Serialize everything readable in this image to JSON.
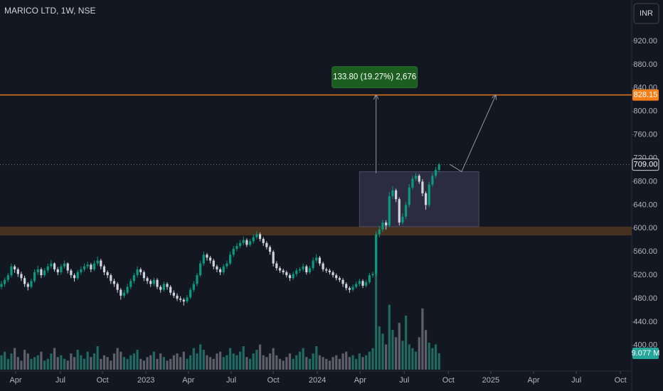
{
  "chart_data": {
    "type": "candlestick",
    "title": "MARICO LTD, 1W, NSE",
    "currency": "INR",
    "up_color": "#089981",
    "down_color": "#d1d4dc",
    "volume_up_color": "#1f6b63",
    "volume_down_color": "#5d606b",
    "xlim": [
      -0.43,
      190.1
    ],
    "xticks": [
      {
        "value": 4.3,
        "label": "Apr"
      },
      {
        "value": 17.8,
        "label": "Jul"
      },
      {
        "value": 30.5,
        "label": "Oct"
      },
      {
        "value": 43.6,
        "label": "2023"
      },
      {
        "value": 56.4,
        "label": "Apr"
      },
      {
        "value": 69.3,
        "label": "Jul"
      },
      {
        "value": 82,
        "label": "Oct"
      },
      {
        "value": 95.3,
        "label": "2024"
      },
      {
        "value": 108.2,
        "label": "Apr"
      },
      {
        "value": 121.5,
        "label": "Jul"
      },
      {
        "value": 134.8,
        "label": "Oct"
      },
      {
        "value": 147.6,
        "label": "2025"
      },
      {
        "value": 160.5,
        "label": "Apr"
      },
      {
        "value": 173.4,
        "label": "Jul"
      },
      {
        "value": 186.7,
        "label": "Oct"
      }
    ],
    "ylim": [
      356,
      990.5
    ],
    "yticks": [
      {
        "value": 400,
        "label": "400.00"
      },
      {
        "value": 440,
        "label": "440.00"
      },
      {
        "value": 480,
        "label": "480.00"
      },
      {
        "value": 520,
        "label": "520.00"
      },
      {
        "value": 560,
        "label": "560.00"
      },
      {
        "value": 600,
        "label": "600.00"
      },
      {
        "value": 640,
        "label": "640.00"
      },
      {
        "value": 680,
        "label": "680.00"
      },
      {
        "value": 720,
        "label": "720.00"
      },
      {
        "value": 760,
        "label": "760.00"
      },
      {
        "value": 800,
        "label": "800.00"
      },
      {
        "value": 840,
        "label": "840.00"
      },
      {
        "value": 880,
        "label": "880.00"
      },
      {
        "value": 920,
        "label": "920.00"
      }
    ],
    "y2lim": [
      0,
      205
    ],
    "grid": false,
    "candles": [
      [
        500,
        510,
        496,
        505
      ],
      [
        505,
        516,
        500,
        512
      ],
      [
        512,
        524,
        508,
        520
      ],
      [
        520,
        540,
        516,
        535
      ],
      [
        535,
        538,
        524,
        530
      ],
      [
        530,
        533,
        517,
        522
      ],
      [
        522,
        526,
        510,
        515
      ],
      [
        515,
        519,
        500,
        505
      ],
      [
        505,
        508,
        494,
        500
      ],
      [
        500,
        514,
        497,
        510
      ],
      [
        510,
        530,
        507,
        525
      ],
      [
        525,
        536,
        520,
        530
      ],
      [
        530,
        533,
        515,
        520
      ],
      [
        520,
        532,
        517,
        528
      ],
      [
        528,
        540,
        524,
        535
      ],
      [
        535,
        546,
        531,
        540
      ],
      [
        540,
        542,
        526,
        530
      ],
      [
        530,
        534,
        520,
        525
      ],
      [
        525,
        539,
        521,
        535
      ],
      [
        535,
        545,
        531,
        540
      ],
      [
        540,
        542,
        523,
        528
      ],
      [
        528,
        531,
        515,
        520
      ],
      [
        520,
        523,
        509,
        515
      ],
      [
        515,
        529,
        512,
        525
      ],
      [
        525,
        535,
        521,
        530
      ],
      [
        530,
        540,
        526,
        535
      ],
      [
        535,
        543,
        531,
        538
      ],
      [
        538,
        541,
        525,
        530
      ],
      [
        530,
        545,
        527,
        540
      ],
      [
        540,
        552,
        536,
        545
      ],
      [
        545,
        548,
        530,
        535
      ],
      [
        535,
        538,
        520,
        525
      ],
      [
        525,
        528,
        515,
        520
      ],
      [
        520,
        523,
        505,
        510
      ],
      [
        510,
        514,
        500,
        505
      ],
      [
        505,
        508,
        490,
        495
      ],
      [
        495,
        498,
        478,
        485
      ],
      [
        485,
        495,
        481,
        490
      ],
      [
        490,
        505,
        487,
        500
      ],
      [
        500,
        514,
        496,
        510
      ],
      [
        510,
        524,
        506,
        520
      ],
      [
        520,
        535,
        516,
        530
      ],
      [
        530,
        533,
        520,
        525
      ],
      [
        525,
        528,
        510,
        515
      ],
      [
        515,
        518,
        505,
        510
      ],
      [
        510,
        513,
        500,
        505
      ],
      [
        505,
        516,
        501,
        512
      ],
      [
        512,
        515,
        496,
        500
      ],
      [
        500,
        503,
        490,
        495
      ],
      [
        495,
        509,
        492,
        505
      ],
      [
        505,
        508,
        495,
        500
      ],
      [
        500,
        503,
        486,
        490
      ],
      [
        490,
        494,
        481,
        485
      ],
      [
        485,
        489,
        476,
        480
      ],
      [
        480,
        484,
        474,
        478
      ],
      [
        478,
        481,
        468,
        475
      ],
      [
        475,
        486,
        472,
        482
      ],
      [
        482,
        499,
        479,
        495
      ],
      [
        495,
        510,
        491,
        505
      ],
      [
        505,
        524,
        501,
        520
      ],
      [
        520,
        545,
        517,
        540
      ],
      [
        540,
        560,
        536,
        555
      ],
      [
        555,
        558,
        545,
        550
      ],
      [
        550,
        553,
        540,
        545
      ],
      [
        545,
        548,
        530,
        535
      ],
      [
        535,
        538,
        525,
        530
      ],
      [
        530,
        533,
        520,
        525
      ],
      [
        525,
        539,
        521,
        535
      ],
      [
        535,
        545,
        531,
        540
      ],
      [
        540,
        560,
        537,
        555
      ],
      [
        555,
        570,
        551,
        565
      ],
      [
        565,
        575,
        561,
        570
      ],
      [
        570,
        580,
        566,
        575
      ],
      [
        575,
        586,
        571,
        580
      ],
      [
        580,
        583,
        568,
        572
      ],
      [
        572,
        582,
        569,
        578
      ],
      [
        578,
        590,
        574,
        585
      ],
      [
        585,
        595,
        581,
        590
      ],
      [
        590,
        593,
        578,
        582
      ],
      [
        582,
        585,
        570,
        575
      ],
      [
        575,
        578,
        564,
        568
      ],
      [
        568,
        571,
        555,
        560
      ],
      [
        560,
        563,
        535,
        540
      ],
      [
        540,
        544,
        528,
        532
      ],
      [
        532,
        535,
        524,
        528
      ],
      [
        528,
        531,
        521,
        525
      ],
      [
        525,
        528,
        516,
        520
      ],
      [
        520,
        523,
        510,
        515
      ],
      [
        515,
        526,
        512,
        522
      ],
      [
        522,
        532,
        518,
        528
      ],
      [
        528,
        534,
        524,
        530
      ],
      [
        530,
        540,
        526,
        535
      ],
      [
        535,
        538,
        521,
        525
      ],
      [
        525,
        536,
        522,
        532
      ],
      [
        532,
        550,
        528,
        545
      ],
      [
        545,
        556,
        541,
        550
      ],
      [
        550,
        553,
        536,
        540
      ],
      [
        540,
        543,
        526,
        530
      ],
      [
        530,
        533,
        524,
        528
      ],
      [
        528,
        531,
        521,
        525
      ],
      [
        525,
        528,
        516,
        520
      ],
      [
        520,
        523,
        511,
        515
      ],
      [
        515,
        518,
        508,
        512
      ],
      [
        512,
        515,
        500,
        505
      ],
      [
        505,
        508,
        494,
        498
      ],
      [
        498,
        501,
        490,
        495
      ],
      [
        495,
        504,
        492,
        500
      ],
      [
        500,
        509,
        497,
        505
      ],
      [
        505,
        514,
        501,
        510
      ],
      [
        510,
        513,
        498,
        502
      ],
      [
        502,
        512,
        499,
        508
      ],
      [
        508,
        524,
        505,
        520
      ],
      [
        520,
        526,
        516,
        522
      ],
      [
        522,
        595,
        518,
        590
      ],
      [
        590,
        604,
        585,
        598
      ],
      [
        598,
        615,
        594,
        610
      ],
      [
        610,
        614,
        598,
        605
      ],
      [
        605,
        662,
        602,
        655
      ],
      [
        655,
        672,
        650,
        665
      ],
      [
        665,
        668,
        645,
        650
      ],
      [
        650,
        653,
        605,
        610
      ],
      [
        610,
        626,
        606,
        620
      ],
      [
        620,
        645,
        616,
        640
      ],
      [
        640,
        676,
        636,
        670
      ],
      [
        670,
        690,
        666,
        685
      ],
      [
        685,
        695,
        681,
        690
      ],
      [
        690,
        693,
        676,
        680
      ],
      [
        680,
        684,
        655,
        660
      ],
      [
        660,
        663,
        632,
        640
      ],
      [
        640,
        680,
        636,
        675
      ],
      [
        675,
        695,
        671,
        690
      ],
      [
        690,
        705,
        686,
        700
      ],
      [
        700,
        712,
        696,
        709
      ]
    ],
    "volume": [
      8,
      10,
      6,
      9,
      12,
      7,
      5,
      11,
      9,
      6,
      7,
      8,
      10,
      5,
      6,
      9,
      12,
      7,
      8,
      6,
      5,
      9,
      7,
      11,
      8,
      6,
      10,
      7,
      9,
      13,
      6,
      8,
      7,
      5,
      9,
      12,
      10,
      7,
      6,
      8,
      9,
      11,
      6,
      5,
      7,
      8,
      10,
      6,
      9,
      7,
      5,
      6,
      8,
      9,
      7,
      10,
      6,
      8,
      12,
      9,
      14,
      11,
      8,
      7,
      6,
      9,
      10,
      7,
      8,
      12,
      9,
      8,
      10,
      13,
      7,
      6,
      9,
      11,
      14,
      8,
      7,
      9,
      12,
      8,
      6,
      5,
      7,
      9,
      6,
      8,
      10,
      12,
      7,
      6,
      9,
      13,
      8,
      7,
      6,
      5,
      7,
      8,
      6,
      9,
      10,
      7,
      8,
      6,
      9,
      7,
      8,
      10,
      12,
      71,
      24,
      20,
      14,
      36,
      22,
      18,
      26,
      16,
      30,
      14,
      12,
      10,
      18,
      34,
      22,
      15,
      12,
      14,
      9.077
    ],
    "volume_last_label": "9.077 M",
    "last_label": "709.00",
    "level": {
      "value": 828.15,
      "color": "#f57f17"
    },
    "zone": {
      "low": 588,
      "high": 603,
      "color": "#4e3520"
    },
    "box": {
      "from": 108,
      "to": 144,
      "low": 603,
      "high": 697
    },
    "measure": {
      "at": 113,
      "from": 694.35,
      "to": 828.15,
      "label": "133.80 (19.27%) 2,676"
    },
    "projection": [
      [
        135.2,
        709.6
      ],
      [
        138.8,
        697
      ],
      [
        149.1,
        828
      ]
    ]
  }
}
